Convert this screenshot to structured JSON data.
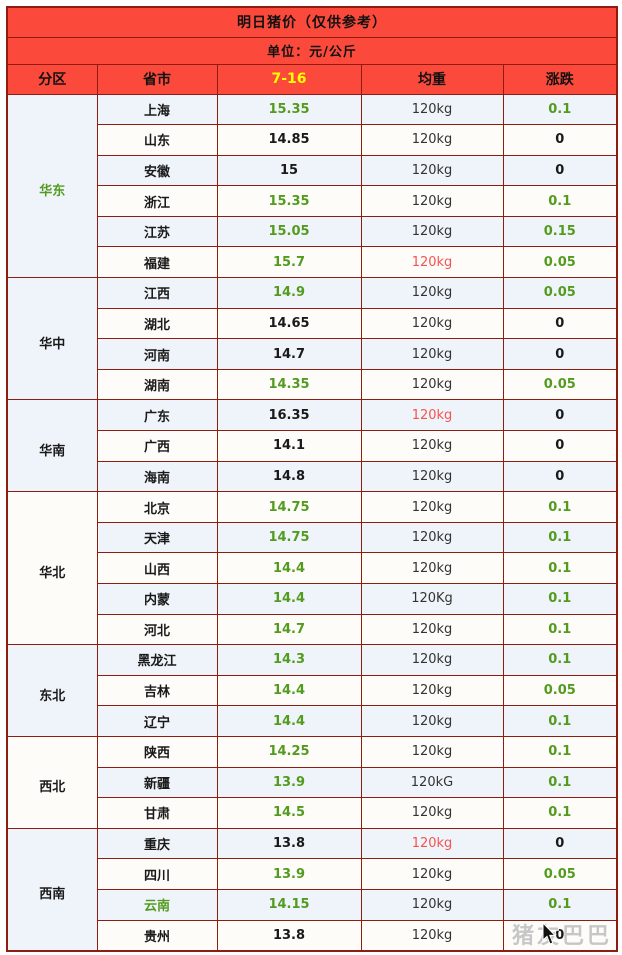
{
  "watermark": {
    "text": "猪友巴巴"
  },
  "colors": {
    "header_bg": "#fb4a3b",
    "border": "#8e1c10",
    "title_text": "#111111",
    "date_header_text": "#ffff00",
    "green": "#539b1e",
    "red": "#f4544f",
    "black": "#1a1a1a",
    "weight_black": "#333333",
    "row_blue": "#eff4fa",
    "row_white": "#fdfcf9"
  },
  "chart_data": {
    "type": "table",
    "title": "明日猪价（仅供参考）",
    "unit": "单位：元/公斤",
    "columns": [
      "分区",
      "省市",
      "7-16",
      "均重",
      "涨跌"
    ],
    "regions": [
      {
        "name": "华东",
        "name_color": "green",
        "rows": [
          {
            "province": "上海",
            "price": "15.35",
            "price_color": "green",
            "weight": "120kg",
            "weight_color": "black",
            "change": "0.1",
            "change_color": "green"
          },
          {
            "province": "山东",
            "price": "14.85",
            "price_color": "black",
            "weight": "120kg",
            "weight_color": "black",
            "change": "0",
            "change_color": "black"
          },
          {
            "province": "安徽",
            "price": "15",
            "price_color": "black",
            "weight": "120kg",
            "weight_color": "black",
            "change": "0",
            "change_color": "black"
          },
          {
            "province": "浙江",
            "price": "15.35",
            "price_color": "green",
            "weight": "120kg",
            "weight_color": "black",
            "change": "0.1",
            "change_color": "green"
          },
          {
            "province": "江苏",
            "price": "15.05",
            "price_color": "green",
            "weight": "120kg",
            "weight_color": "black",
            "change": "0.15",
            "change_color": "green"
          },
          {
            "province": "福建",
            "price": "15.7",
            "price_color": "green",
            "weight": "120kg",
            "weight_color": "red",
            "change": "0.05",
            "change_color": "green"
          }
        ]
      },
      {
        "name": "华中",
        "name_color": "black",
        "rows": [
          {
            "province": "江西",
            "price": "14.9",
            "price_color": "green",
            "weight": "120kg",
            "weight_color": "black",
            "change": "0.05",
            "change_color": "green"
          },
          {
            "province": "湖北",
            "price": "14.65",
            "price_color": "black",
            "weight": "120kg",
            "weight_color": "black",
            "change": "0",
            "change_color": "black"
          },
          {
            "province": "河南",
            "price": "14.7",
            "price_color": "black",
            "weight": "120kg",
            "weight_color": "black",
            "change": "0",
            "change_color": "black"
          },
          {
            "province": "湖南",
            "price": "14.35",
            "price_color": "green",
            "weight": "120kg",
            "weight_color": "black",
            "change": "0.05",
            "change_color": "green"
          }
        ]
      },
      {
        "name": "华南",
        "name_color": "black",
        "rows": [
          {
            "province": "广东",
            "price": "16.35",
            "price_color": "black",
            "weight": "120kg",
            "weight_color": "red",
            "change": "0",
            "change_color": "black"
          },
          {
            "province": "广西",
            "price": "14.1",
            "price_color": "black",
            "weight": "120kg",
            "weight_color": "black",
            "change": "0",
            "change_color": "black"
          },
          {
            "province": "海南",
            "price": "14.8",
            "price_color": "black",
            "weight": "120kg",
            "weight_color": "black",
            "change": "0",
            "change_color": "black"
          }
        ]
      },
      {
        "name": "华北",
        "name_color": "black",
        "rows": [
          {
            "province": "北京",
            "price": "14.75",
            "price_color": "green",
            "weight": "120kg",
            "weight_color": "black",
            "change": "0.1",
            "change_color": "green"
          },
          {
            "province": "天津",
            "price": "14.75",
            "price_color": "green",
            "weight": "120kg",
            "weight_color": "black",
            "change": "0.1",
            "change_color": "green"
          },
          {
            "province": "山西",
            "price": "14.4",
            "price_color": "green",
            "weight": "120kg",
            "weight_color": "black",
            "change": "0.1",
            "change_color": "green"
          },
          {
            "province": "内蒙",
            "price": "14.4",
            "price_color": "green",
            "weight": "120Kg",
            "weight_color": "black",
            "change": "0.1",
            "change_color": "green"
          },
          {
            "province": "河北",
            "price": "14.7",
            "price_color": "green",
            "weight": "120kg",
            "weight_color": "black",
            "change": "0.1",
            "change_color": "green"
          }
        ]
      },
      {
        "name": "东北",
        "name_color": "black",
        "rows": [
          {
            "province": "黑龙江",
            "price": "14.3",
            "price_color": "green",
            "weight": "120kg",
            "weight_color": "black",
            "change": "0.1",
            "change_color": "green"
          },
          {
            "province": "吉林",
            "price": "14.4",
            "price_color": "green",
            "weight": "120kg",
            "weight_color": "black",
            "change": "0.05",
            "change_color": "green"
          },
          {
            "province": "辽宁",
            "price": "14.4",
            "price_color": "green",
            "weight": "120kg",
            "weight_color": "black",
            "change": "0.1",
            "change_color": "green"
          }
        ]
      },
      {
        "name": "西北",
        "name_color": "black",
        "rows": [
          {
            "province": "陕西",
            "price": "14.25",
            "price_color": "green",
            "weight": "120kg",
            "weight_color": "black",
            "change": "0.1",
            "change_color": "green"
          },
          {
            "province": "新疆",
            "price": "13.9",
            "price_color": "green",
            "weight": "120kG",
            "weight_color": "black",
            "change": "0.1",
            "change_color": "green"
          },
          {
            "province": "甘肃",
            "price": "14.5",
            "price_color": "green",
            "weight": "120kg",
            "weight_color": "black",
            "change": "0.1",
            "change_color": "green"
          }
        ]
      },
      {
        "name": "西南",
        "name_color": "black",
        "rows": [
          {
            "province": "重庆",
            "price": "13.8",
            "price_color": "black",
            "weight": "120kg",
            "weight_color": "red",
            "change": "0",
            "change_color": "black"
          },
          {
            "province": "四川",
            "price": "13.9",
            "price_color": "green",
            "weight": "120kg",
            "weight_color": "black",
            "change": "0.05",
            "change_color": "green"
          },
          {
            "province": "云南",
            "price": "14.15",
            "price_color": "green",
            "weight": "120kg",
            "weight_color": "black",
            "change": "0.1",
            "change_color": "green",
            "province_color": "green"
          },
          {
            "province": "贵州",
            "price": "13.8",
            "price_color": "black",
            "weight": "120kg",
            "weight_color": "black",
            "change": "0",
            "change_color": "black"
          }
        ]
      }
    ]
  }
}
